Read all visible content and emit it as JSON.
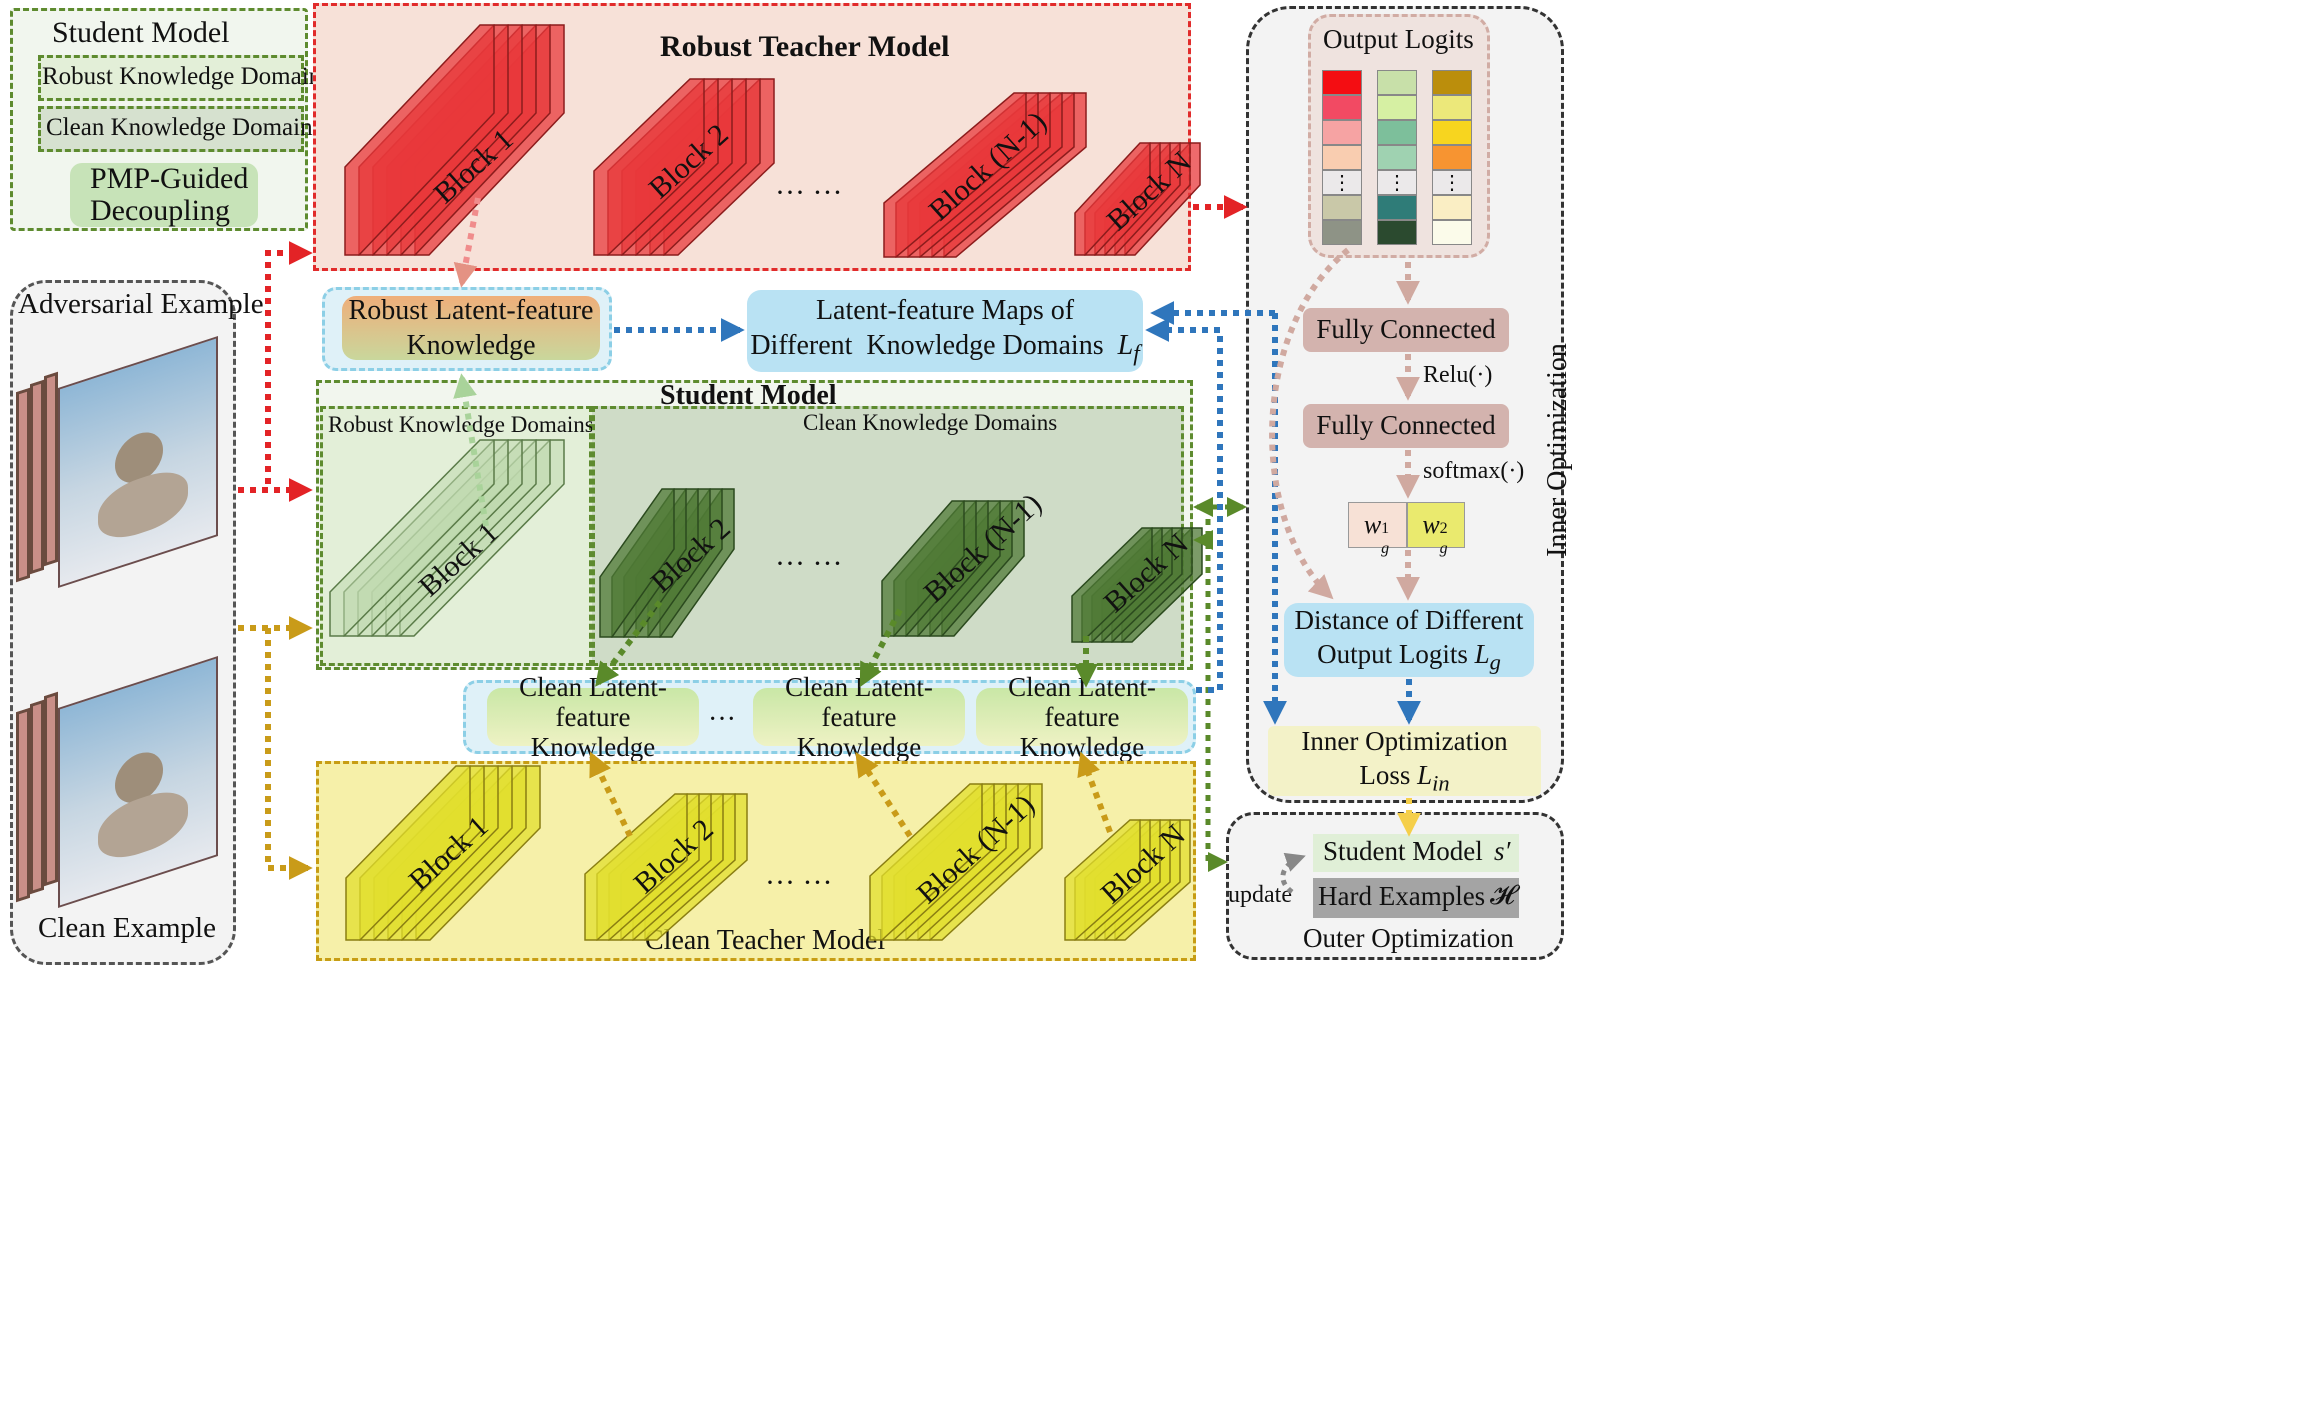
{
  "legend": {
    "title": "Student Model",
    "robust_domains": "Robust Knowledge Domains",
    "clean_domains": "Clean Knowledge Domains",
    "pmp_line1": "PMP-Guided",
    "pmp_line2": "Decoupling"
  },
  "inputs": {
    "adversarial_label": "Adversarial Example",
    "clean_label": "Clean Example"
  },
  "robust_teacher": {
    "title": "Robust Teacher Model",
    "blocks": [
      "Block 1",
      "Block 2",
      "Block (N-1)",
      "Block N"
    ],
    "ellipsis": "··· ···"
  },
  "robust_latent": {
    "line1": "Robust Latent-feature",
    "line2": "Knowledge"
  },
  "latent_maps": {
    "line1": "Latent-feature Maps of",
    "line2": "Different  Knowledge Domains",
    "symbol": "L",
    "sub": "f"
  },
  "student": {
    "title": "Student Model",
    "robust_domains": "Robust Knowledge Domains",
    "clean_domains": "Clean Knowledge Domains",
    "blocks": [
      "Block 1",
      "Block 2",
      "Block (N-1)",
      "Block N"
    ],
    "ellipsis": "··· ···"
  },
  "clean_latent": {
    "items": [
      {
        "line1": "Clean Latent-feature",
        "line2": "Knowledge"
      },
      {
        "line1": "Clean Latent-feature",
        "line2": "Knowledge"
      },
      {
        "line1": "Clean Latent-feature",
        "line2": "Knowledge"
      }
    ],
    "ellipsis": "···"
  },
  "clean_teacher": {
    "title": "Clean Teacher Model",
    "blocks": [
      "Block 1",
      "Block 2",
      "Block (N-1)",
      "Block N"
    ],
    "ellipsis": "··· ···"
  },
  "inner": {
    "side_label": "Inner Optimization",
    "output_logits": "Output Logits",
    "logit_columns": [
      [
        "#f40d12",
        "#f24a63",
        "#f6a3a3",
        "#f9cdb0",
        "#ebe9ea",
        "#c9c8a8",
        "#8e9386"
      ],
      [
        "#c8e0a9",
        "#d6f0a3",
        "#7dbf9b",
        "#9fd2b1",
        "#ebe9ea",
        "#2f7c78",
        "#2b4a2f"
      ],
      [
        "#bb8e0c",
        "#ece87a",
        "#f7d51f",
        "#f79431",
        "#ebe9ea",
        "#faeec4",
        "#fbfbea"
      ]
    ],
    "vdots": "⋮",
    "fc1": "Fully Connected",
    "relu": "Relu(·)",
    "fc2": "Fully Connected",
    "softmax": "softmax(·)",
    "w1": "w",
    "w1_sup": "1",
    "w1_sub": "g",
    "w2": "w",
    "w2_sup": "2",
    "w2_sub": "g",
    "distance_line1": "Distance of Different",
    "distance_line2": "Output Logits",
    "distance_symbol": "L",
    "distance_sub": "g",
    "inner_loss_line1": "Inner Optimization",
    "inner_loss_line2": "Loss",
    "inner_loss_symbol": "L",
    "inner_loss_sub": "in"
  },
  "outer": {
    "label": "Outer Optimization",
    "student_model": "Student Model",
    "student_symbol": "s′",
    "hard_examples": "Hard Examples",
    "hard_symbol": "𝓗",
    "update": "update"
  },
  "colors": {
    "robust_teacher_fill": "#f7e1d8",
    "robust_teacher_border": "#e12b2b",
    "student_border": "#5e8b2f",
    "student_robust_fill": "#e3efd8",
    "student_clean_fill": "#cfdcc7",
    "clean_teacher_fill": "#f6f0a9",
    "clean_teacher_border": "#c79d14",
    "latent_box_fill": "#b9e2f3",
    "inner_border": "#333333",
    "fc_fill": "#d3b3ae",
    "red_arrow": "#e32326",
    "gold_arrow": "#c99b19",
    "blue_arrow": "#2f76bc",
    "green_arrow": "#5a8a2a",
    "pink_arrow": "#e49283",
    "tan_arrow": "#d0a9a0"
  }
}
